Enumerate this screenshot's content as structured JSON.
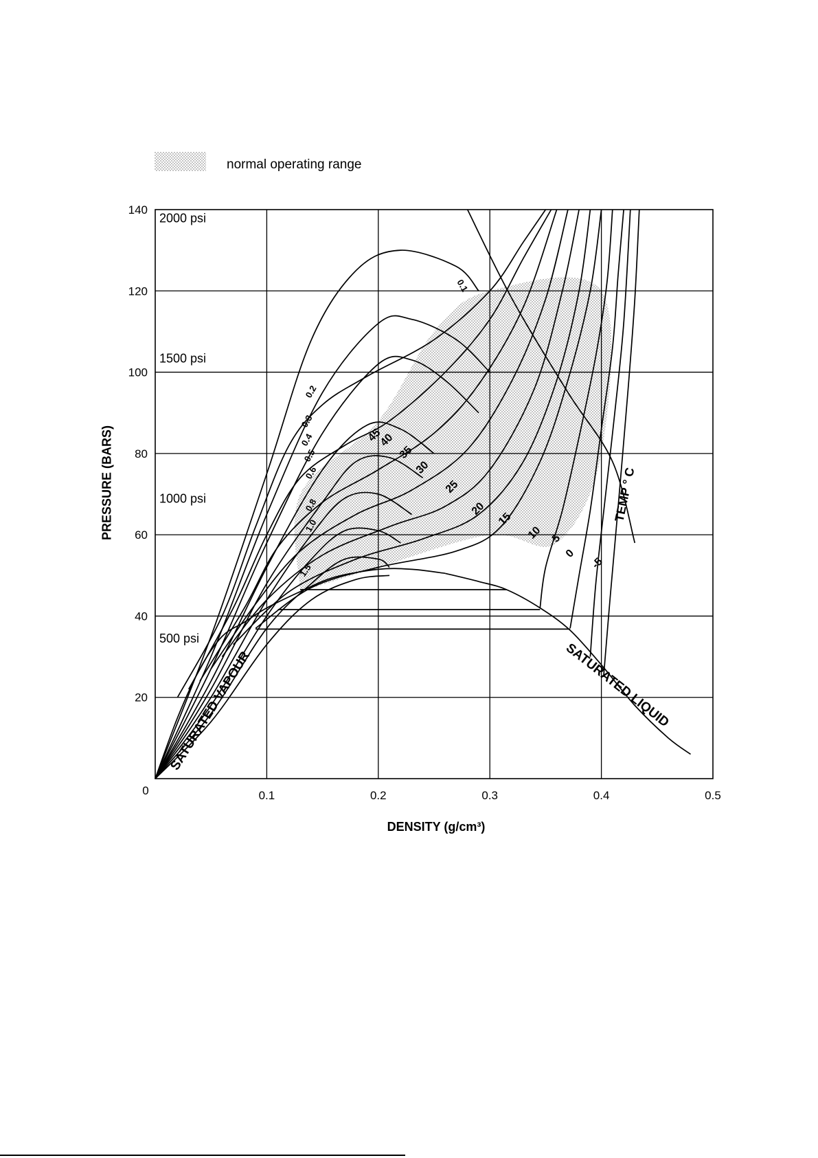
{
  "legend": {
    "label": "normal operating range",
    "swatch_color": "#d6d6d6"
  },
  "chart_data": {
    "type": "line",
    "title": "",
    "xlabel": "DENSITY (g/cm³)",
    "ylabel": "PRESSURE (BARS)",
    "xlim": [
      0,
      0.5
    ],
    "ylim": [
      0,
      140
    ],
    "grid": true,
    "xticks": [
      "0",
      "0.1",
      "0.2",
      "0.3",
      "0.4",
      "0.5"
    ],
    "yticks": [
      "0",
      "20",
      "40",
      "60",
      "80",
      "100",
      "120",
      "140"
    ],
    "psi_labels": [
      {
        "text": "2000 psi",
        "y": 137.9
      },
      {
        "text": "1500 psi",
        "y": 103.4
      },
      {
        "text": "1000 psi",
        "y": 68.9
      },
      {
        "text": "500 psi",
        "y": 34.5
      }
    ],
    "saturation_labels": {
      "vapour": "SATURATED VAPOUR",
      "liquid": "SATURATED LIQUID"
    },
    "temp_label": "TEMP ° C",
    "enthalpy_labels": [
      "0.1",
      "0.2",
      "0.3",
      "0.4",
      "0.5",
      "0.6",
      "0.8",
      "1.0",
      "1.5"
    ],
    "temp_labels": [
      "45",
      "40",
      "35",
      "30",
      "25",
      "20",
      "15",
      "10",
      "5",
      "0",
      "-5"
    ],
    "saturation_dome": {
      "vapour": [
        [
          0,
          0
        ],
        [
          0.02,
          15
        ],
        [
          0.04,
          27
        ],
        [
          0.06,
          35
        ],
        [
          0.08,
          38.5
        ],
        [
          0.1,
          42
        ],
        [
          0.13,
          46
        ],
        [
          0.16,
          49.5
        ],
        [
          0.2,
          51.5
        ],
        [
          0.23,
          51.5
        ],
        [
          0.26,
          50.5
        ]
      ],
      "liquid": [
        [
          0.26,
          50.5
        ],
        [
          0.29,
          48.5
        ],
        [
          0.315,
          46.5
        ],
        [
          0.345,
          42
        ],
        [
          0.372,
          36.5
        ],
        [
          0.4,
          28
        ],
        [
          0.43,
          18
        ],
        [
          0.46,
          10
        ],
        [
          0.48,
          6
        ]
      ]
    },
    "horizontal_lines": [
      {
        "y": 46.5,
        "x": [
          0.13,
          0.315
        ]
      },
      {
        "y": 41.6,
        "x": [
          0.11,
          0.345
        ]
      },
      {
        "y": 36.8,
        "x": [
          0.09,
          0.372
        ]
      }
    ],
    "isotherms": [
      {
        "label": "45",
        "points": [
          [
            0.02,
            20
          ],
          [
            0.06,
            40
          ],
          [
            0.09,
            62
          ],
          [
            0.12,
            82
          ],
          [
            0.15,
            92
          ],
          [
            0.19,
            99
          ],
          [
            0.25,
            108
          ],
          [
            0.3,
            120
          ],
          [
            0.33,
            132
          ],
          [
            0.35,
            140
          ]
        ]
      },
      {
        "label": "40",
        "points": [
          [
            0.03,
            22
          ],
          [
            0.07,
            42
          ],
          [
            0.1,
            60
          ],
          [
            0.13,
            74
          ],
          [
            0.17,
            82
          ],
          [
            0.21,
            88
          ],
          [
            0.26,
            100
          ],
          [
            0.3,
            113
          ],
          [
            0.33,
            128
          ],
          [
            0.355,
            140
          ]
        ]
      },
      {
        "label": "35",
        "points": [
          [
            0.04,
            24
          ],
          [
            0.08,
            42
          ],
          [
            0.11,
            57
          ],
          [
            0.15,
            68
          ],
          [
            0.2,
            76
          ],
          [
            0.25,
            85
          ],
          [
            0.29,
            97
          ],
          [
            0.33,
            116
          ],
          [
            0.36,
            140
          ]
        ]
      },
      {
        "label": "30",
        "points": [
          [
            0.05,
            27
          ],
          [
            0.09,
            43
          ],
          [
            0.13,
            56
          ],
          [
            0.18,
            65
          ],
          [
            0.23,
            71
          ],
          [
            0.28,
            81
          ],
          [
            0.32,
            98
          ],
          [
            0.35,
            118
          ],
          [
            0.37,
            140
          ]
        ]
      },
      {
        "label": "25",
        "points": [
          [
            0.06,
            30
          ],
          [
            0.1,
            44
          ],
          [
            0.15,
            55
          ],
          [
            0.21,
            62
          ],
          [
            0.26,
            67
          ],
          [
            0.3,
            76
          ],
          [
            0.34,
            96
          ],
          [
            0.365,
            120
          ],
          [
            0.38,
            140
          ]
        ]
      },
      {
        "label": "20",
        "points": [
          [
            0.07,
            33
          ],
          [
            0.12,
            46
          ],
          [
            0.18,
            54
          ],
          [
            0.24,
            59
          ],
          [
            0.29,
            65
          ],
          [
            0.33,
            78
          ],
          [
            0.36,
            98
          ],
          [
            0.38,
            120
          ],
          [
            0.39,
            140
          ]
        ]
      },
      {
        "label": "15",
        "points": [
          [
            0.09,
            37
          ],
          [
            0.14,
            47
          ],
          [
            0.2,
            52
          ],
          [
            0.27,
            56
          ],
          [
            0.31,
            62
          ],
          [
            0.345,
            78
          ],
          [
            0.37,
            98
          ],
          [
            0.39,
            120
          ],
          [
            0.4,
            140
          ]
        ]
      },
      {
        "label": "10",
        "points": [
          [
            0.345,
            42
          ],
          [
            0.35,
            52
          ],
          [
            0.365,
            66
          ],
          [
            0.38,
            84
          ],
          [
            0.395,
            104
          ],
          [
            0.405,
            122
          ],
          [
            0.41,
            140
          ]
        ]
      },
      {
        "label": "5",
        "points": [
          [
            0.372,
            37
          ],
          [
            0.38,
            50
          ],
          [
            0.39,
            66
          ],
          [
            0.4,
            86
          ],
          [
            0.41,
            106
          ],
          [
            0.415,
            124
          ],
          [
            0.42,
            140
          ]
        ]
      },
      {
        "label": "0",
        "points": [
          [
            0.39,
            30
          ],
          [
            0.395,
            48
          ],
          [
            0.403,
            68
          ],
          [
            0.412,
            90
          ],
          [
            0.42,
            112
          ],
          [
            0.426,
            140
          ]
        ]
      },
      {
        "label": "-5",
        "points": [
          [
            0.402,
            25
          ],
          [
            0.408,
            45
          ],
          [
            0.416,
            70
          ],
          [
            0.424,
            96
          ],
          [
            0.43,
            118
          ],
          [
            0.434,
            140
          ]
        ]
      }
    ],
    "enthalpy_lines": [
      {
        "label": "0.1",
        "points": [
          [
            0.0,
            0
          ],
          [
            0.05,
            35
          ],
          [
            0.1,
            75
          ],
          [
            0.14,
            108
          ],
          [
            0.18,
            125
          ],
          [
            0.22,
            130
          ],
          [
            0.27,
            126
          ],
          [
            0.29,
            120
          ]
        ]
      },
      {
        "label": "0.2",
        "points": [
          [
            0.0,
            0
          ],
          [
            0.05,
            30
          ],
          [
            0.1,
            65
          ],
          [
            0.15,
            95
          ],
          [
            0.2,
            112
          ],
          [
            0.23,
            113
          ],
          [
            0.27,
            108
          ],
          [
            0.3,
            100
          ]
        ]
      },
      {
        "label": "0.3",
        "points": [
          [
            0.0,
            0
          ],
          [
            0.05,
            27
          ],
          [
            0.1,
            58
          ],
          [
            0.15,
            85
          ],
          [
            0.2,
            102
          ],
          [
            0.23,
            103
          ],
          [
            0.26,
            98
          ],
          [
            0.29,
            90
          ]
        ]
      },
      {
        "label": "0.4",
        "points": [
          [
            0.0,
            0
          ],
          [
            0.05,
            24
          ],
          [
            0.1,
            52
          ],
          [
            0.15,
            76
          ],
          [
            0.19,
            87
          ],
          [
            0.22,
            86
          ],
          [
            0.25,
            80
          ]
        ]
      },
      {
        "label": "0.5",
        "points": [
          [
            0.0,
            0
          ],
          [
            0.05,
            22
          ],
          [
            0.1,
            48
          ],
          [
            0.15,
            68
          ],
          [
            0.18,
            78
          ],
          [
            0.21,
            79
          ],
          [
            0.24,
            74
          ]
        ]
      },
      {
        "label": "0.6",
        "points": [
          [
            0.0,
            0
          ],
          [
            0.05,
            20
          ],
          [
            0.1,
            44
          ],
          [
            0.14,
            60
          ],
          [
            0.17,
            69
          ],
          [
            0.2,
            70
          ],
          [
            0.23,
            65
          ]
        ]
      },
      {
        "label": "0.8",
        "points": [
          [
            0.0,
            0
          ],
          [
            0.05,
            18
          ],
          [
            0.1,
            40
          ],
          [
            0.14,
            54
          ],
          [
            0.17,
            61
          ],
          [
            0.2,
            61
          ],
          [
            0.22,
            58
          ]
        ]
      },
      {
        "label": "1.0",
        "points": [
          [
            0.0,
            0
          ],
          [
            0.05,
            16
          ],
          [
            0.1,
            37
          ],
          [
            0.14,
            48
          ],
          [
            0.17,
            54
          ],
          [
            0.2,
            54
          ],
          [
            0.21,
            52
          ]
        ]
      },
      {
        "label": "1.5",
        "points": [
          [
            0.0,
            0
          ],
          [
            0.05,
            14
          ],
          [
            0.1,
            33
          ],
          [
            0.14,
            44
          ],
          [
            0.18,
            49
          ],
          [
            0.21,
            50
          ]
        ]
      }
    ],
    "temp_line": [
      [
        0.28,
        140
      ],
      [
        0.32,
        118
      ],
      [
        0.37,
        95
      ],
      [
        0.41,
        78
      ],
      [
        0.43,
        58
      ]
    ],
    "operating_range": [
      [
        0.13,
        46
      ],
      [
        0.2,
        52
      ],
      [
        0.3,
        60
      ],
      [
        0.36,
        58
      ],
      [
        0.4,
        80
      ],
      [
        0.4,
        120
      ],
      [
        0.3,
        120
      ],
      [
        0.25,
        110
      ],
      [
        0.2,
        88
      ],
      [
        0.13,
        70
      ]
    ]
  }
}
